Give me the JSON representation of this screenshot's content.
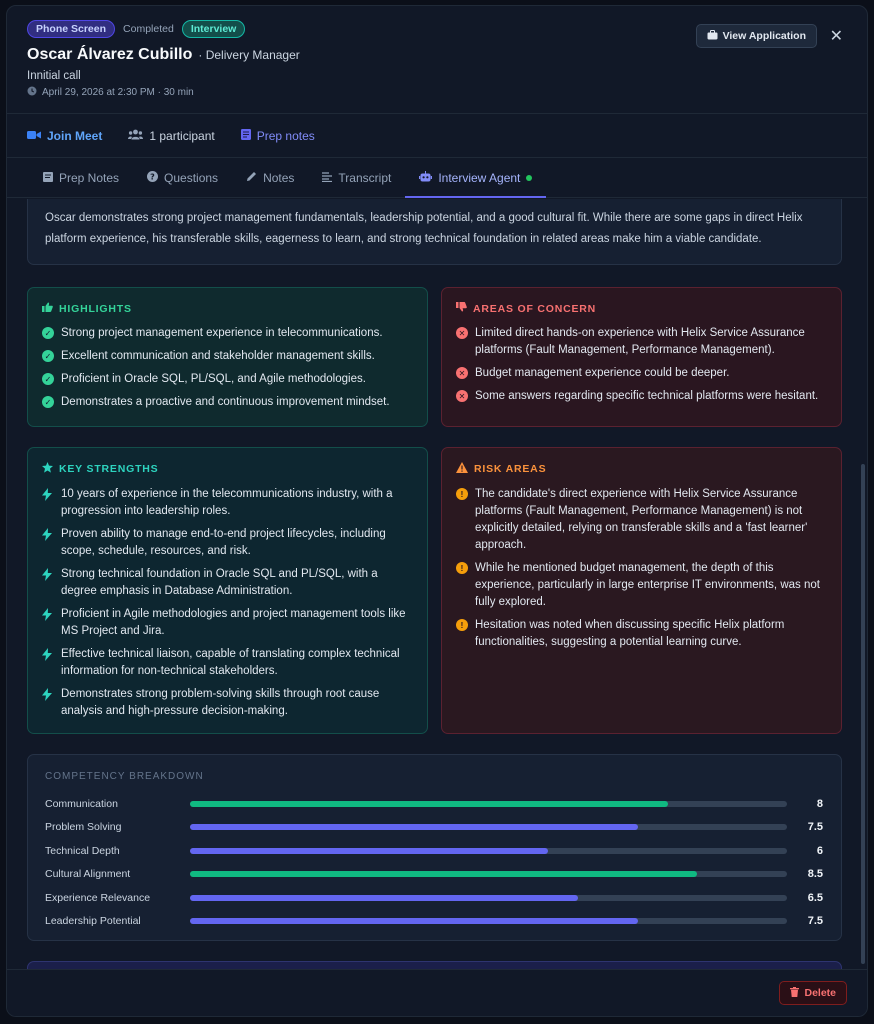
{
  "header": {
    "badge_stage": "Phone Screen",
    "status": "Completed",
    "badge_type": "Interview",
    "candidate_name": "Oscar Álvarez Cubillo",
    "role": "· Delivery Manager",
    "subtitle": "Innitial call",
    "datetime": "April 29, 2026 at 2:30 PM · 30 min",
    "view_application_label": "View Application",
    "close_label": "✕"
  },
  "actions": {
    "join_meet": "Join Meet",
    "participants": "1 participant",
    "prep_notes": "Prep notes"
  },
  "tabs": [
    {
      "label": "Prep Notes"
    },
    {
      "label": "Questions"
    },
    {
      "label": "Notes"
    },
    {
      "label": "Transcript"
    },
    {
      "label": "Interview Agent"
    }
  ],
  "summary": {
    "text": "Oscar demonstrates strong project management fundamentals, leadership potential, and a good cultural fit. While there are some gaps in direct Helix platform experience, his transferable skills, eagerness to learn, and strong technical foundation in related areas make him a viable candidate."
  },
  "highlights": {
    "title": "HIGHLIGHTS",
    "items": [
      "Strong project management experience in telecommunications.",
      "Excellent communication and stakeholder management skills.",
      "Proficient in Oracle SQL, PL/SQL, and Agile methodologies.",
      "Demonstrates a proactive and continuous improvement mindset."
    ]
  },
  "concerns": {
    "title": "AREAS OF CONCERN",
    "items": [
      "Limited direct hands-on experience with Helix Service Assurance platforms (Fault Management, Performance Management).",
      "Budget management experience could be deeper.",
      "Some answers regarding specific technical platforms were hesitant."
    ]
  },
  "strengths": {
    "title": "KEY STRENGTHS",
    "items": [
      "10 years of experience in the telecommunications industry, with a progression into leadership roles.",
      "Proven ability to manage end-to-end project lifecycles, including scope, schedule, resources, and risk.",
      "Strong technical foundation in Oracle SQL and PL/SQL, with a degree emphasis in Database Administration.",
      "Proficient in Agile methodologies and project management tools like MS Project and Jira.",
      "Effective technical liaison, capable of translating complex technical information for non-technical stakeholders.",
      "Demonstrates strong problem-solving skills through root cause analysis and high-pressure decision-making."
    ]
  },
  "risks": {
    "title": "RISK AREAS",
    "items": [
      "The candidate's direct experience with Helix Service Assurance platforms (Fault Management, Performance Management) is not explicitly detailed, relying on transferable skills and a 'fast learner' approach.",
      "While he mentioned budget management, the depth of this experience, particularly in large enterprise IT environments, was not fully explored.",
      "Hesitation was noted when discussing specific Helix platform functionalities, suggesting a potential learning curve."
    ]
  },
  "competency": {
    "title": "COMPETENCY BREAKDOWN",
    "max": 10,
    "rows": [
      {
        "label": "Communication",
        "value": 8,
        "display": "8",
        "color": "#10b981"
      },
      {
        "label": "Problem Solving",
        "value": 7.5,
        "display": "7.5",
        "color": "#6366f1"
      },
      {
        "label": "Technical Depth",
        "value": 6,
        "display": "6",
        "color": "#6366f1"
      },
      {
        "label": "Cultural Alignment",
        "value": 8.5,
        "display": "8.5",
        "color": "#10b981"
      },
      {
        "label": "Experience Relevance",
        "value": 6.5,
        "display": "6.5",
        "color": "#6366f1"
      },
      {
        "label": "Leadership Potential",
        "value": 7.5,
        "display": "7.5",
        "color": "#6366f1"
      }
    ]
  },
  "footer": {
    "delete_label": "Delete"
  }
}
